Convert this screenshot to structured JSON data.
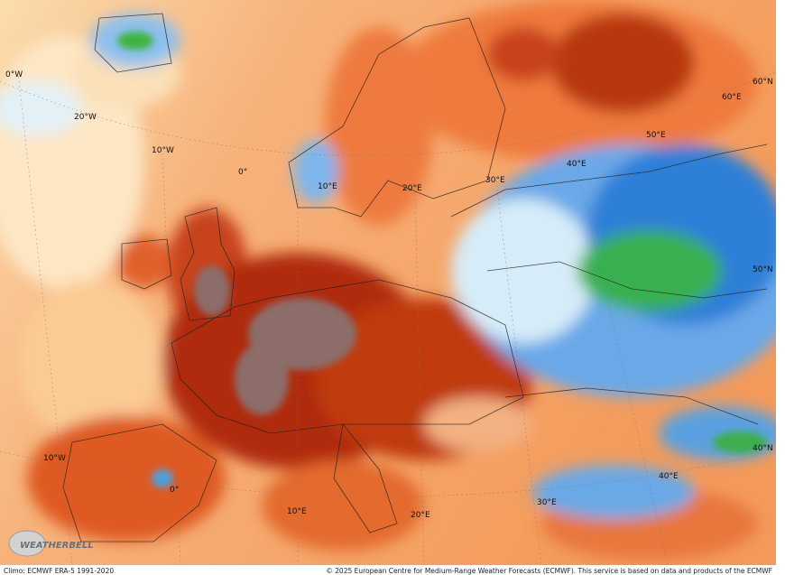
{
  "map": {
    "labels": [
      "0°W",
      "20°W",
      "10°W",
      "0°",
      "10°E",
      "20°E",
      "30°E",
      "40°E",
      "50°E",
      "60°E",
      "60°N",
      "50°N",
      "40°N",
      "40°E",
      "30°E",
      "20°E",
      "10°E",
      "0°",
      "10°W"
    ]
  },
  "logo": "WEATHERBELL",
  "footer": {
    "left": "Climo: ECMWF ERA-5 1991-2020",
    "right": "© 2025 European Centre for Medium-Range Weather Forecasts (ECMWF). This service is based on data and products of the ECMWF"
  }
}
